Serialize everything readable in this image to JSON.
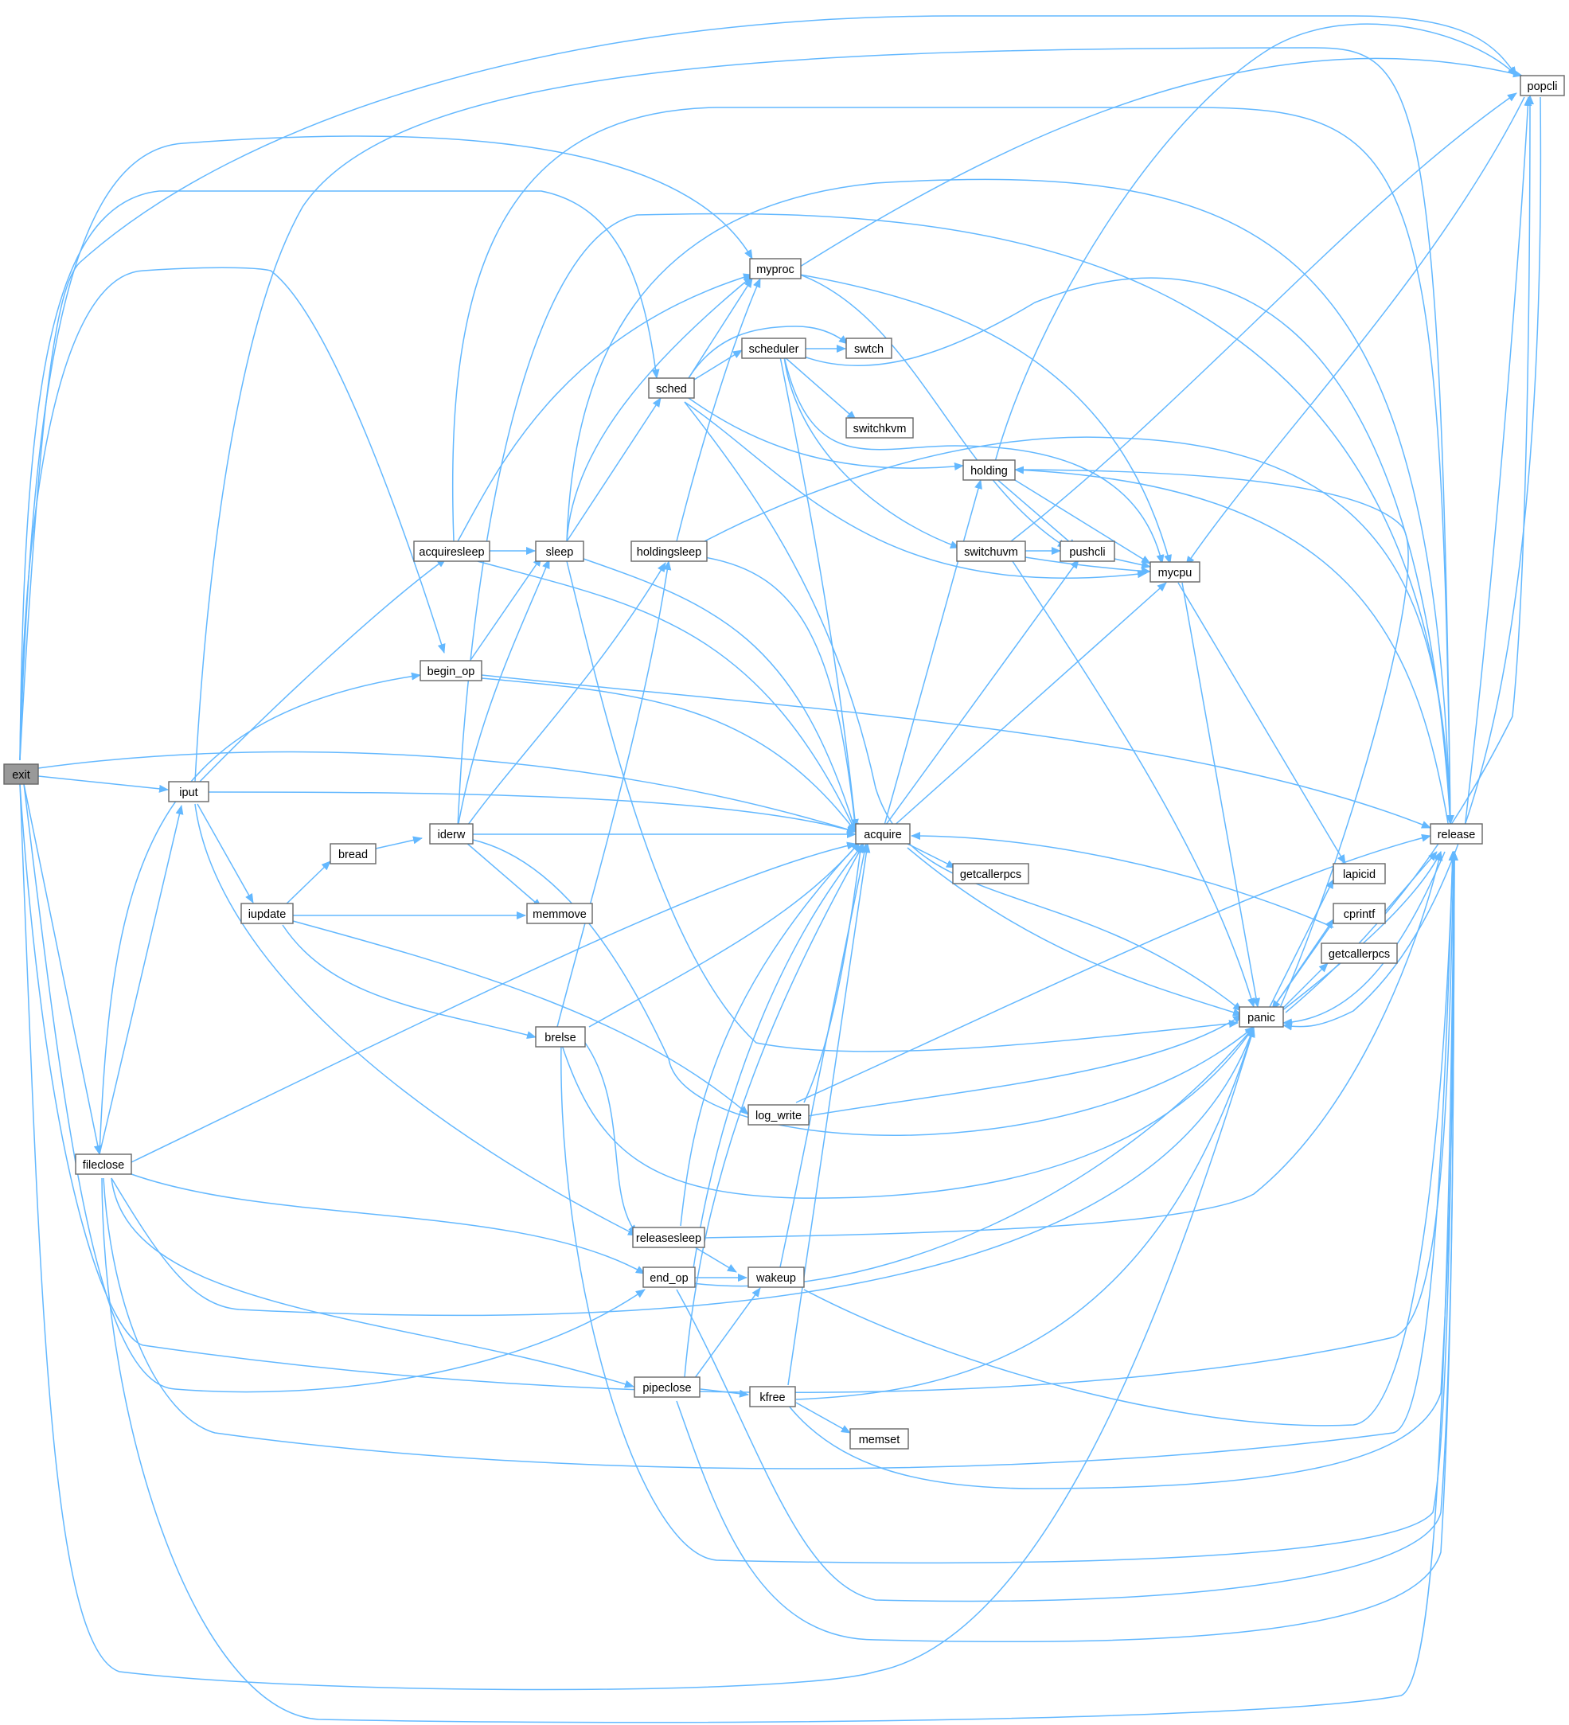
{
  "colors": {
    "edge": "#63b8ff",
    "node_border": "#666666",
    "root_fill": "#999999",
    "node_fill": "#ffffff"
  },
  "nodes": {
    "exit": "exit",
    "iput": "iput",
    "fileclose": "fileclose",
    "acquiresleep": "acquiresleep",
    "begin_op": "begin_op",
    "iupdate": "iupdate",
    "bread": "bread",
    "ideriw": "iderw",
    "sleep": "sleep",
    "sched": "sched",
    "myproc": "myproc",
    "scheduler": "scheduler",
    "swtch": "swtch",
    "switchkvm": "switchkvm",
    "holdingsleep": "holdingsleep",
    "holding": "holding",
    "switchuvm": "switchuvm",
    "pushcli": "pushcli",
    "mycpu": "mycpu",
    "acquire": "acquire",
    "getcallerpcs1": "getcallerpcs",
    "memmove": "memmove",
    "brelse": "brelse",
    "log_write": "log_write",
    "releasesleep": "releasesleep",
    "end_op": "end_op",
    "wakeup": "wakeup",
    "pipeclose": "pipeclose",
    "kfree": "kfree",
    "memset": "memset",
    "panic": "panic",
    "lapicid": "lapicid",
    "cprintf": "cprintf",
    "getcallerpcs2": "getcallerpcs",
    "release": "release",
    "popcli": "popcli"
  }
}
